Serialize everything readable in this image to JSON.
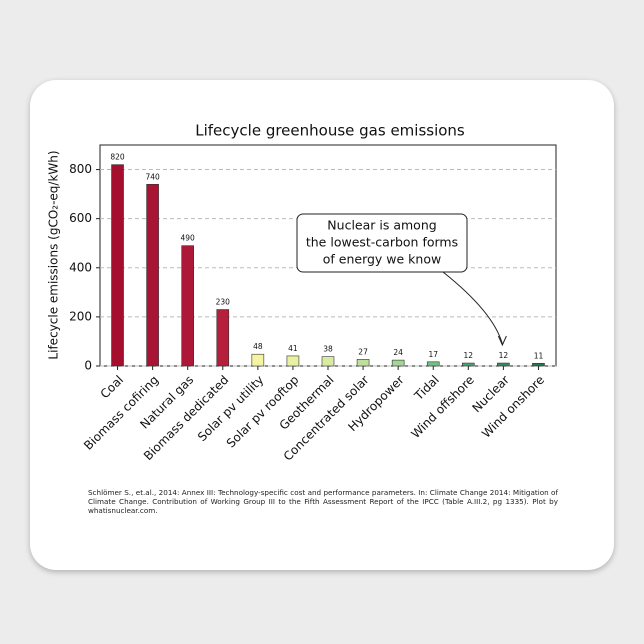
{
  "chart_data": {
    "type": "bar",
    "title": "Lifecycle greenhouse gas emissions",
    "y_label": "Lifecycle emissions (gCO₂-eq/kWh)",
    "categories": [
      "Coal",
      "Biomass cofiring",
      "Natural gas",
      "Biomass dedicated",
      "Solar pv utility",
      "Solar pv rooftop",
      "Geothermal",
      "Concentrated solar",
      "Hydropower",
      "Tidal",
      "Wind offshore",
      "Nuclear",
      "Wind onshore"
    ],
    "values": [
      820,
      740,
      490,
      230,
      48,
      41,
      38,
      27,
      24,
      17,
      12,
      12,
      11
    ],
    "colors": [
      "#a50f2d",
      "#a81434",
      "#ae1838",
      "#b51f3c",
      "#f4f4a2",
      "#e8f1a2",
      "#d9eba0",
      "#bfe098",
      "#a5d594",
      "#74bf84",
      "#48a474",
      "#338e60",
      "#237a52"
    ],
    "ylim": [
      0,
      900
    ],
    "yticks": [
      0,
      200,
      400,
      600,
      800
    ],
    "grid": true,
    "annotation": [
      "Nuclear is among",
      "the lowest-carbon forms",
      "of energy we know"
    ],
    "source": "Schlömer S., et.al., 2014: Annex III: Technology-specific cost and performance parameters. In: Climate Change 2014: Mitigation of Climate Change. Contribution of Working Group III to the Fifth Assessment Report of the IPCC (Table A.III.2, pg 1335). Plot by whatisnuclear.com."
  }
}
